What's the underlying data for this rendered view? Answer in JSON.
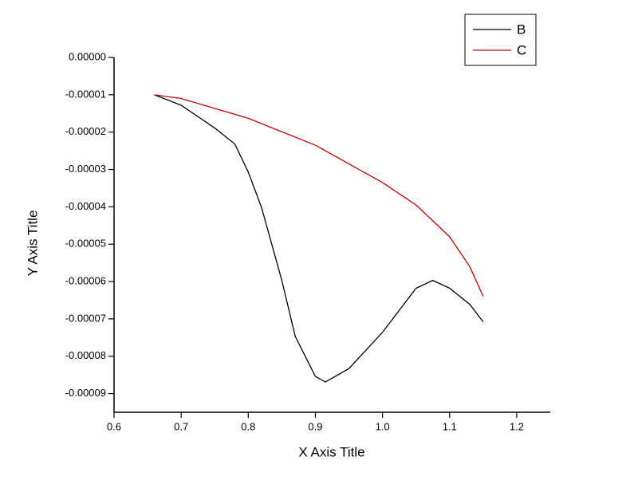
{
  "chart_data": {
    "type": "line",
    "x_label": "X Axis Title",
    "y_label": "Y Axis Title",
    "xlim": [
      0.6,
      1.25
    ],
    "xticks": [
      0.6,
      0.7,
      0.8,
      0.9,
      {
        "value": 1.0,
        "label": "1.0"
      },
      1.1,
      1.2
    ],
    "ylim": [
      -9.5e-05,
      0
    ],
    "yticks": [
      {
        "value": 0,
        "label": "0.00000"
      },
      {
        "value": -1e-05,
        "label": "-0.00001"
      },
      {
        "value": -2e-05,
        "label": "-0.00002"
      },
      {
        "value": -3e-05,
        "label": "-0.00003"
      },
      {
        "value": -4e-05,
        "label": "-0.00004"
      },
      {
        "value": -5e-05,
        "label": "-0.00005"
      },
      {
        "value": -6e-05,
        "label": "-0.00006"
      },
      {
        "value": -7e-05,
        "label": "-0.00007"
      },
      {
        "value": -8e-05,
        "label": "-0.00008"
      },
      {
        "value": -9e-05,
        "label": "-0.00009"
      }
    ],
    "legend": "top-right",
    "series": [
      {
        "name": "B",
        "color": "#000000",
        "x": [
          0.66,
          0.7,
          0.75,
          0.78,
          0.8,
          0.82,
          0.85,
          0.87,
          0.9,
          0.915,
          0.95,
          1.0,
          1.05,
          1.075,
          1.1,
          1.13,
          1.15
        ],
        "values": [
          -1e-05,
          -1.28e-05,
          -1.89e-05,
          -2.32e-05,
          -3.07e-05,
          -4.03e-05,
          -5.97e-05,
          -7.47e-05,
          -8.54e-05,
          -8.69e-05,
          -8.33e-05,
          -7.36e-05,
          -6.18e-05,
          -5.97e-05,
          -6.18e-05,
          -6.61e-05,
          -7.08e-05
        ]
      },
      {
        "name": "C",
        "color": "#cc0000",
        "x": [
          0.66,
          0.7,
          0.8,
          0.9,
          1.0,
          1.05,
          1.1,
          1.13,
          1.15
        ],
        "values": [
          -1e-05,
          -1.1e-05,
          -1.63e-05,
          -2.35e-05,
          -3.35e-05,
          -3.95e-05,
          -4.8e-05,
          -5.6e-05,
          -6.4e-05
        ]
      }
    ]
  }
}
